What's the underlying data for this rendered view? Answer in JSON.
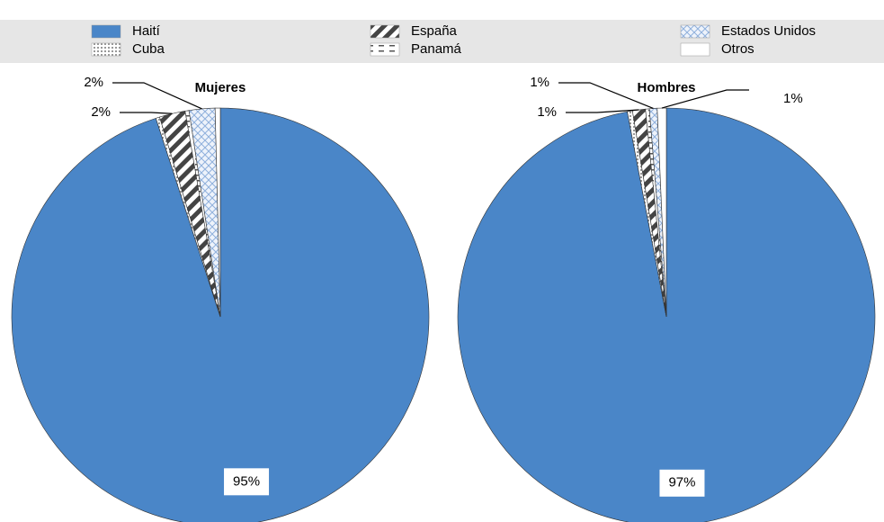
{
  "chart_data": [
    {
      "type": "pie",
      "title": "Mujeres",
      "categories": [
        "Haití",
        "Cuba",
        "España",
        "Panamá",
        "Estados Unidos",
        "Otros"
      ],
      "values": [
        95,
        0.3,
        2,
        0.3,
        2,
        0.4
      ],
      "value_labels": [
        "95%",
        null,
        "2%",
        null,
        "2%",
        null
      ],
      "colors": [
        "#4a86c8",
        "dots",
        "stripes",
        "dashes",
        "cross",
        "#ffffff"
      ]
    },
    {
      "type": "pie",
      "title": "Hombres",
      "categories": [
        "Haití",
        "Cuba",
        "España",
        "Panamá",
        "Estados Unidos",
        "Otros"
      ],
      "values": [
        97,
        0.4,
        1,
        0.3,
        0.6,
        0.7
      ],
      "value_labels": [
        "97%",
        null,
        "1%",
        null,
        "1%",
        "1%"
      ],
      "colors": [
        "#4a86c8",
        "dots",
        "stripes",
        "dashes",
        "cross",
        "#ffffff"
      ]
    }
  ]
}
